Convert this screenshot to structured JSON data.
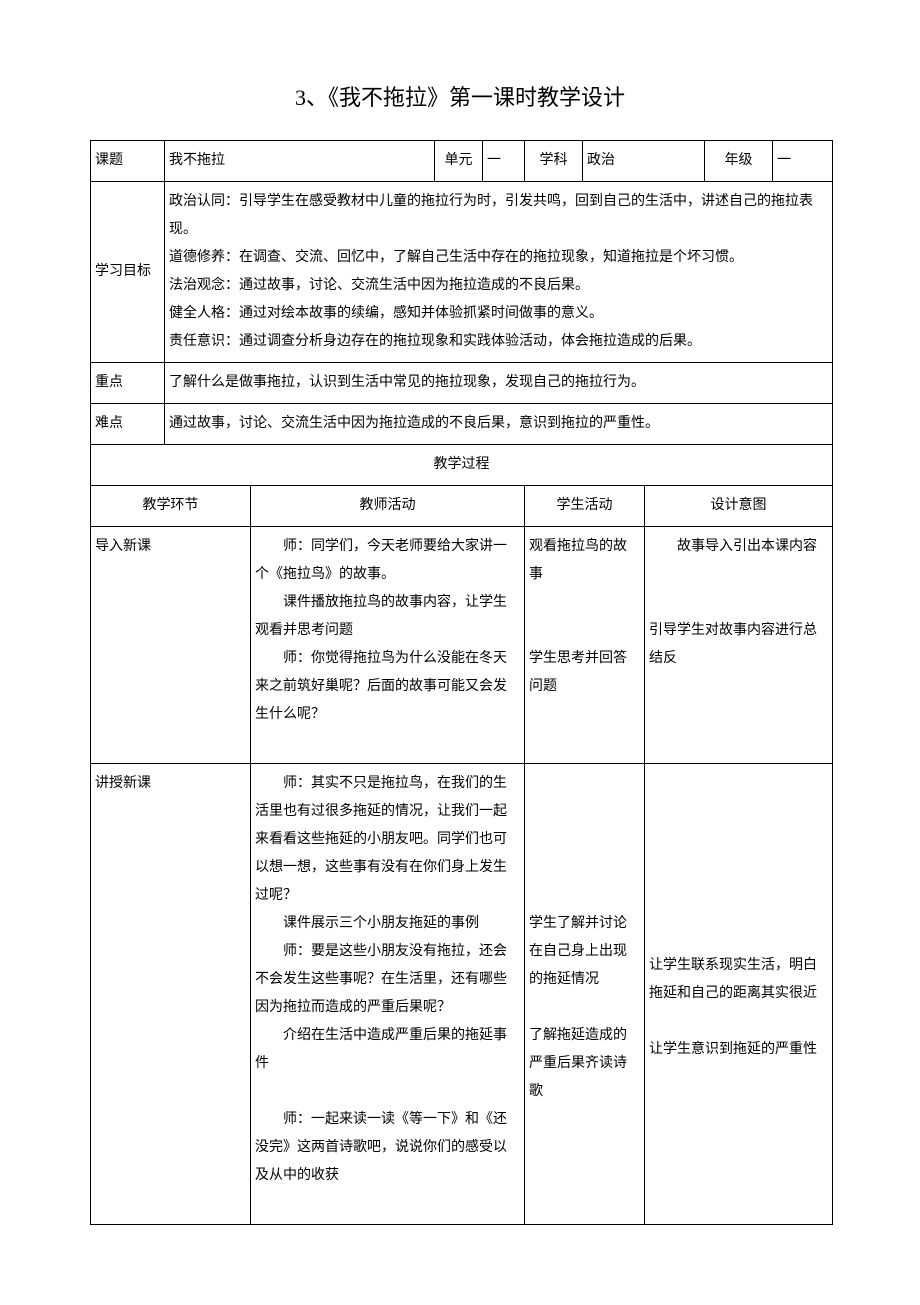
{
  "title": "3、《我不拖拉》第一课时教学设计",
  "header": {
    "labels": {
      "topic": "课题",
      "unit": "单元",
      "subject": "学科",
      "grade": "年级"
    },
    "values": {
      "topic": "我不拖拉",
      "unit": "一",
      "subject": "政治",
      "grade": "一"
    }
  },
  "goals": {
    "label": "学习目标",
    "items": [
      "政治认同：引导学生在感受教材中儿童的拖拉行为时，引发共鸣，回到自己的生活中，讲述自己的拖拉表现。",
      "道德修养：在调查、交流、回忆中，了解自己生活中存在的拖拉现象，知道拖拉是个坏习惯。",
      "法治观念：通过故事，讨论、交流生活中因为拖拉造成的不良后果。",
      "健全人格：通过对绘本故事的续编，感知并体验抓紧时间做事的意义。",
      "责任意识：通过调查分析身边存在的拖拉现象和实践体验活动，体会拖拉造成的后果。"
    ]
  },
  "keypoint": {
    "label": "重点",
    "text": "了解什么是做事拖拉，认识到生活中常见的拖拉现象，发现自己的拖拉行为。"
  },
  "difficulty": {
    "label": "难点",
    "text": "通过故事，讨论、交流生活中因为拖拉造成的不良后果，意识到拖拉的严重性。"
  },
  "process": {
    "title": "教学过程",
    "columns": {
      "stage": "教学环节",
      "teacher": "教师活动",
      "student": "学生活动",
      "intent": "设计意图"
    },
    "rows": [
      {
        "stage": "导入新课",
        "teacher": [
          "师：同学们，今天老师要给大家讲一个《拖拉鸟》的故事。",
          "课件播放拖拉鸟的故事内容，让学生观看并思考问题",
          "师：你觉得拖拉鸟为什么没能在冬天来之前筑好巢呢？后面的故事可能又会发生什么呢？"
        ],
        "student": [
          "观看拖拉鸟的故事",
          "",
          "学生思考并回答问题"
        ],
        "intent": [
          "故事导入引出本课内容",
          "",
          "引导学生对故事内容进行总结反"
        ]
      },
      {
        "stage": "讲授新课",
        "teacher": [
          "师：其实不只是拖拉鸟，在我们的生活里也有过很多拖延的情况，让我们一起来看看这些拖延的小朋友吧。同学们也可以想一想，这些事有没有在你们身上发生过呢？",
          "课件展示三个小朋友拖延的事例",
          "师：要是这些小朋友没有拖拉，还会不会发生这些事呢？在生活里，还有哪些因为拖拉而造成的严重后果呢？",
          "介绍在生活中造成严重后果的拖延事件",
          "",
          "师：一起来读一读《等一下》和《还没完》这两首诗歌吧，说说你们的感受以及从中的收获"
        ],
        "student": [
          "",
          "学生了解并讨论在自己身上出现的拖延情况",
          "",
          "了解拖延造成的严重后果齐读诗歌",
          ""
        ],
        "intent": [
          "",
          "让学生联系现实生活，明白拖延和自己的距离其实很近",
          "",
          "让学生意识到拖延的严重性",
          ""
        ]
      }
    ]
  },
  "style": {
    "page_bg": "#ffffff",
    "text_color": "#000000",
    "border_color": "#000000",
    "title_fontsize": 22,
    "cell_fontsize": 14,
    "line_height": 2.0,
    "font_family": "SimSun"
  }
}
